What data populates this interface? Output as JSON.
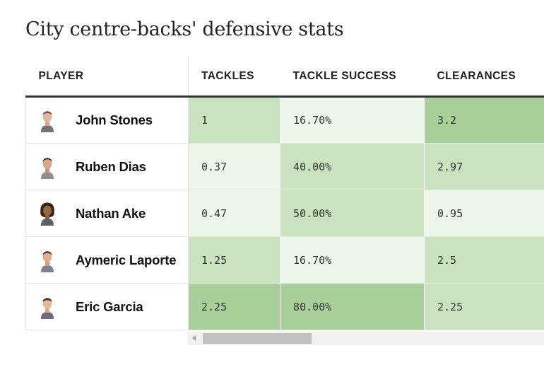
{
  "title": "City centre-backs' defensive stats",
  "columns": [
    "PLAYER",
    "TACKLES",
    "TACKLE SUCCESS",
    "CLEARANCES"
  ],
  "shade_colors": {
    "dark": "#a9d09a",
    "mid": "#c8e3bd",
    "light": "#eef6ea"
  },
  "rows": [
    {
      "player": "John Stones",
      "avatar_icon": "player-headshot-icon",
      "tackles": "1",
      "tackle_success": "16.70%",
      "clearances": "3.2",
      "shade": [
        "mid",
        "light",
        "dark"
      ]
    },
    {
      "player": "Ruben Dias",
      "avatar_icon": "player-headshot-icon",
      "tackles": "0.37",
      "tackle_success": "40.00%",
      "clearances": "2.97",
      "shade": [
        "light",
        "mid",
        "mid"
      ]
    },
    {
      "player": "Nathan Ake",
      "avatar_icon": "player-headshot-icon",
      "tackles": "0.47",
      "tackle_success": "50.00%",
      "clearances": "0.95",
      "shade": [
        "light",
        "mid",
        "light"
      ]
    },
    {
      "player": "Aymeric Laporte",
      "avatar_icon": "player-headshot-icon",
      "tackles": "1.25",
      "tackle_success": "16.70%",
      "clearances": "2.5",
      "shade": [
        "mid",
        "light",
        "mid"
      ]
    },
    {
      "player": "Eric Garcia",
      "avatar_icon": "player-headshot-icon",
      "tackles": "2.25",
      "tackle_success": "80.00%",
      "clearances": "2.25",
      "shade": [
        "dark",
        "dark",
        "mid"
      ]
    }
  ]
}
